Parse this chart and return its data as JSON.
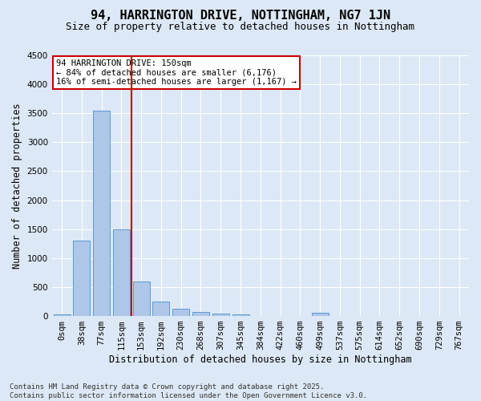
{
  "title": "94, HARRINGTON DRIVE, NOTTINGHAM, NG7 1JN",
  "subtitle": "Size of property relative to detached houses in Nottingham",
  "xlabel": "Distribution of detached houses by size in Nottingham",
  "ylabel": "Number of detached properties",
  "bin_labels": [
    "0sqm",
    "38sqm",
    "77sqm",
    "115sqm",
    "153sqm",
    "192sqm",
    "230sqm",
    "268sqm",
    "307sqm",
    "345sqm",
    "384sqm",
    "422sqm",
    "460sqm",
    "499sqm",
    "537sqm",
    "575sqm",
    "614sqm",
    "652sqm",
    "690sqm",
    "729sqm",
    "767sqm"
  ],
  "bar_values": [
    30,
    1300,
    3550,
    1500,
    600,
    250,
    130,
    70,
    40,
    30,
    5,
    0,
    2,
    50,
    2,
    0,
    0,
    0,
    0,
    0,
    0
  ],
  "bar_color": "#aec6e8",
  "bar_edge_color": "#5b9bd5",
  "property_line_x": 3.5,
  "property_line_color": "#cc0000",
  "annotation_text": "94 HARRINGTON DRIVE: 150sqm\n← 84% of detached houses are smaller (6,176)\n16% of semi-detached houses are larger (1,167) →",
  "annotation_box_color": "#ffffff",
  "annotation_box_edge_color": "#cc0000",
  "ylim": [
    0,
    4500
  ],
  "yticks": [
    0,
    500,
    1000,
    1500,
    2000,
    2500,
    3000,
    3500,
    4000,
    4500
  ],
  "bg_color": "#dce8f5",
  "plot_bg_color": "#dce8f5",
  "footer_line1": "Contains HM Land Registry data © Crown copyright and database right 2025.",
  "footer_line2": "Contains public sector information licensed under the Open Government Licence v3.0.",
  "title_fontsize": 11,
  "subtitle_fontsize": 9,
  "xlabel_fontsize": 8.5,
  "ylabel_fontsize": 8.5,
  "tick_fontsize": 7.5,
  "annotation_fontsize": 7.5,
  "footer_fontsize": 6.5
}
